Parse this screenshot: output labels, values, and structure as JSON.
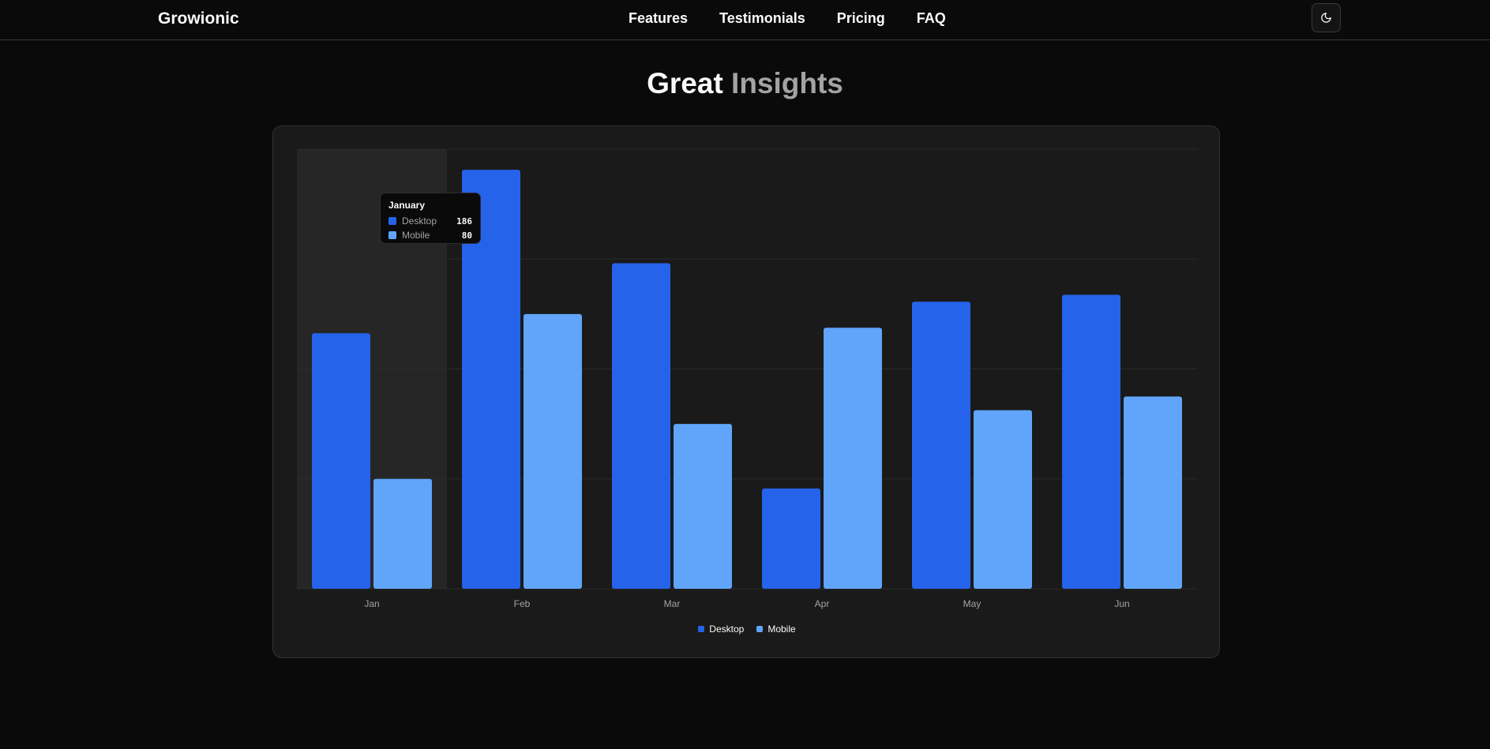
{
  "header": {
    "brand": "Growionic",
    "nav": [
      "Features",
      "Testimonials",
      "Pricing",
      "FAQ"
    ],
    "theme_icon": "moon-icon"
  },
  "heading": {
    "word1": "Great",
    "word2": "Insights"
  },
  "tooltip": {
    "title": "January",
    "rows": [
      {
        "name": "Desktop",
        "value": "186"
      },
      {
        "name": "Mobile",
        "value": "80"
      }
    ]
  },
  "legend": [
    "Desktop",
    "Mobile"
  ],
  "colors": {
    "desktop": "#2563eb",
    "mobile": "#60a5fa"
  },
  "chart_data": {
    "type": "bar",
    "categories": [
      "Jan",
      "Feb",
      "Mar",
      "Apr",
      "May",
      "Jun"
    ],
    "series": [
      {
        "name": "Desktop",
        "values": [
          186,
          305,
          237,
          73,
          209,
          214
        ]
      },
      {
        "name": "Mobile",
        "values": [
          80,
          200,
          120,
          190,
          130,
          140
        ]
      }
    ],
    "ylim": [
      0,
      320
    ],
    "grid": true,
    "legend": "bottom-center",
    "highlighted": "Jan"
  }
}
